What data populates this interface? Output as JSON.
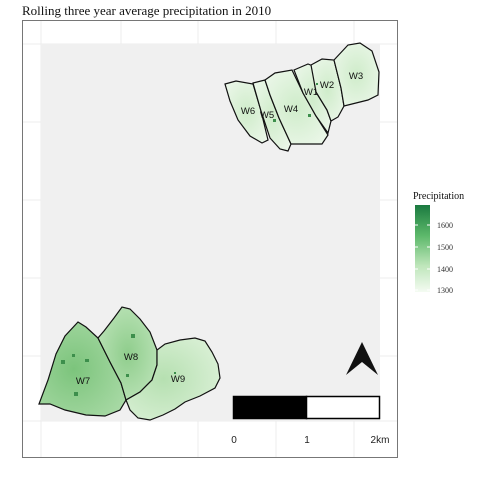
{
  "title": "Rolling three year average precipitation in 2010",
  "legend": {
    "title": "Precipitation",
    "ticks": [
      "1600",
      "1500",
      "1400",
      "1300"
    ],
    "color_low": "#f7fcf5",
    "color_high": "#1a7a40"
  },
  "parcels": [
    {
      "id": "W1",
      "label": "W1"
    },
    {
      "id": "W2",
      "label": "W2"
    },
    {
      "id": "W3",
      "label": "W3"
    },
    {
      "id": "W4",
      "label": "W4"
    },
    {
      "id": "W5",
      "label": "W5"
    },
    {
      "id": "W6",
      "label": "W6"
    },
    {
      "id": "W7",
      "label": "W7"
    },
    {
      "id": "W8",
      "label": "W8"
    },
    {
      "id": "W9",
      "label": "W9"
    }
  ],
  "scale_bar": {
    "ticks": [
      "0",
      "1",
      "2km"
    ]
  },
  "north_arrow": "north-arrow"
}
